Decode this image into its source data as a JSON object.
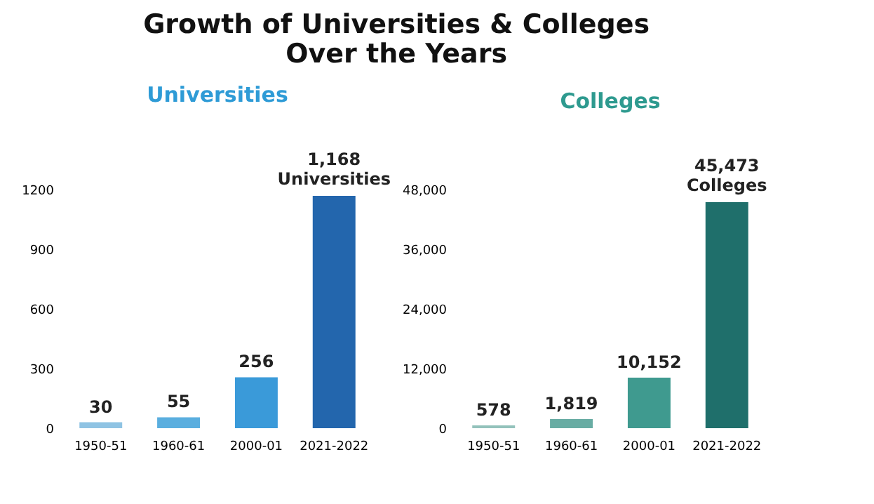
{
  "chart_data": [
    {
      "type": "bar",
      "title": "Universities",
      "annotations": [
        "Growth of Universities & Colleges",
        "Over the Years"
      ],
      "categories": [
        "1950-51",
        "1960-61",
        "2000-01",
        "2021-2022"
      ],
      "values": [
        30,
        55,
        256,
        1168
      ],
      "colors": [
        "#8fc3e3",
        "#5aaedf",
        "#3a9ad9",
        "#2366ad"
      ],
      "value_labels": [
        "30",
        "55",
        "256",
        "1,168 Universities"
      ],
      "ylim": [
        0,
        1200
      ],
      "yticks": [
        0,
        300,
        600,
        900,
        1200
      ],
      "grid": false
    },
    {
      "type": "bar",
      "title": "Colleges",
      "categories": [
        "1950-51",
        "1960-61",
        "2000-01",
        "2021-2022"
      ],
      "values": [
        578,
        1819,
        10152,
        45473
      ],
      "colors": [
        "#93c2bb",
        "#68aca3",
        "#3f9a8f",
        "#1f6f6b"
      ],
      "value_labels": [
        "578",
        "1,819",
        "10,152",
        "45,473 Colleges"
      ],
      "ylim": [
        0,
        48000
      ],
      "yticks": [
        0,
        {
          "value": 12000,
          "label": "12,000"
        },
        {
          "value": 24000,
          "label": "24,000"
        },
        {
          "value": 36000,
          "label": "36,000"
        },
        {
          "value": 48000,
          "label": "48,000"
        }
      ],
      "grid": false
    }
  ]
}
